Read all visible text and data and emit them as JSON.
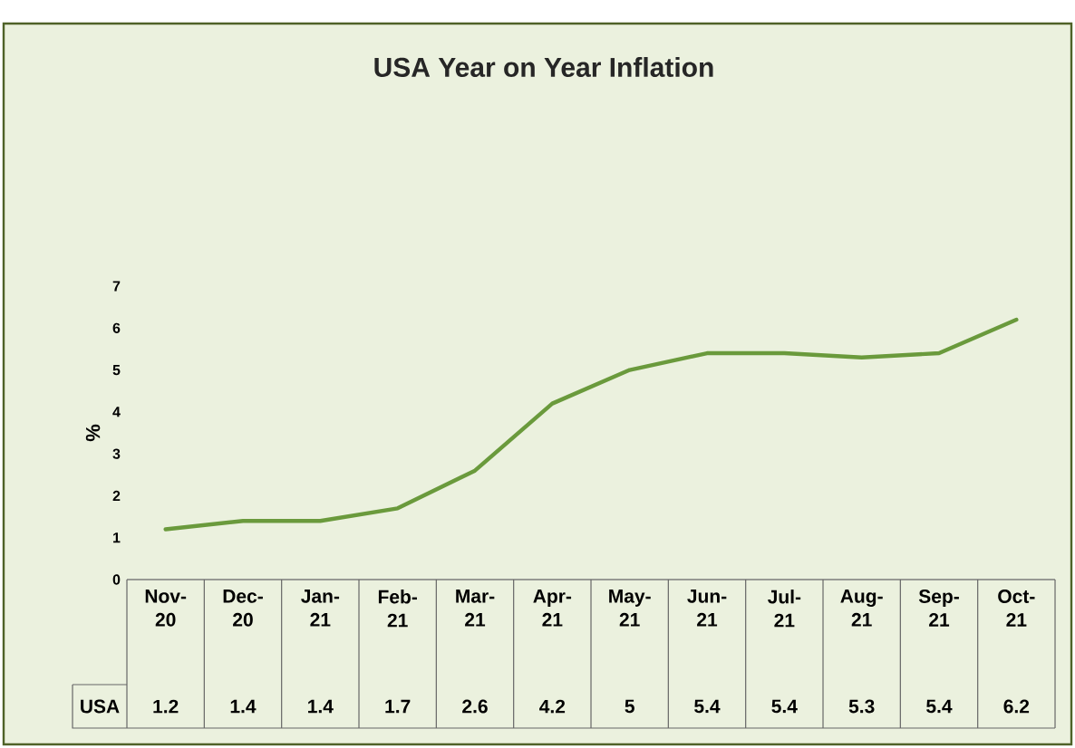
{
  "chart_data": {
    "type": "line",
    "title": "USA Year on Year Inflation",
    "ylabel": "%",
    "categories": [
      "Nov-20",
      "Dec-20",
      "Jan-21",
      "Feb-21",
      "Mar-21",
      "Apr-21",
      "May-21",
      "Jun-21",
      "Jul-21",
      "Aug-21",
      "Sep-21",
      "Oct-21"
    ],
    "series": [
      {
        "name": "USA",
        "color": "#6a9a3c",
        "values": [
          1.2,
          1.4,
          1.4,
          1.7,
          2.6,
          4.2,
          5,
          5.4,
          5.4,
          5.3,
          5.4,
          6.2
        ]
      }
    ],
    "ylim": [
      0,
      7
    ],
    "yticks": [
      0,
      1,
      2,
      3,
      4,
      5,
      6,
      7
    ],
    "grid": false,
    "legend": false,
    "data_labels": true,
    "marker": "none",
    "line_style": "solid"
  }
}
